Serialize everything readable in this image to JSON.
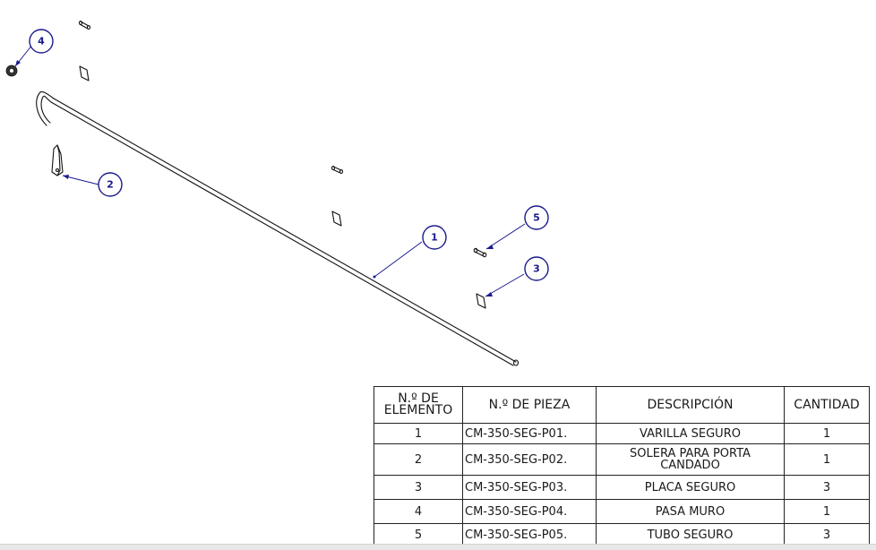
{
  "balloons": [
    {
      "id": "1",
      "label": "1"
    },
    {
      "id": "2",
      "label": "2"
    },
    {
      "id": "3",
      "label": "3"
    },
    {
      "id": "4",
      "label": "4"
    },
    {
      "id": "5",
      "label": "5"
    }
  ],
  "bom": {
    "headers": {
      "item_line1": "N.º DE",
      "item_line2": "ELEMENTO",
      "part_no": "N.º DE PIEZA",
      "description": "DESCRIPCIÓN",
      "qty": "CANTIDAD"
    },
    "rows": [
      {
        "item": "1",
        "part": "CM-350-SEG-P01.",
        "desc_line1": "VARILLA SEGURO",
        "desc_line2": "",
        "qty": "1"
      },
      {
        "item": "2",
        "part": "CM-350-SEG-P02.",
        "desc_line1": "SOLERA PARA PORTA",
        "desc_line2": "CANDADO",
        "qty": "1"
      },
      {
        "item": "3",
        "part": "CM-350-SEG-P03.",
        "desc_line1": "PLACA SEGURO",
        "desc_line2": "",
        "qty": "3"
      },
      {
        "item": "4",
        "part": "CM-350-SEG-P04.",
        "desc_line1": "PASA MURO",
        "desc_line2": "",
        "qty": "1"
      },
      {
        "item": "5",
        "part": "CM-350-SEG-P05.",
        "desc_line1": "TUBO SEGURO",
        "desc_line2": "",
        "qty": "3"
      }
    ]
  }
}
